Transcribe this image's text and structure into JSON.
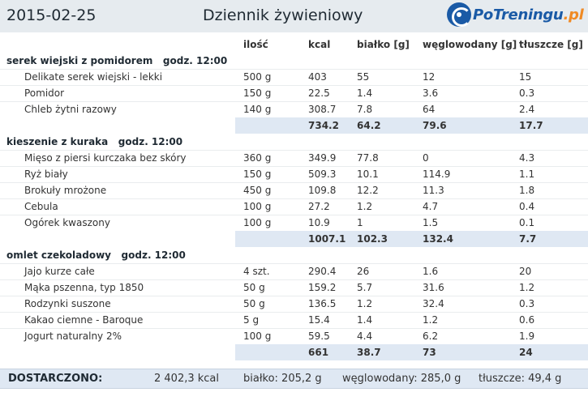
{
  "header": {
    "date": "2015-02-25",
    "title": "Dziennik żywieniowy",
    "logo_main": "PoTreningu",
    "logo_suffix": ".pl"
  },
  "columns": {
    "ilosc": "ilość",
    "kcal": "kcal",
    "bialko": "białko [g]",
    "wegle": "węglowodany [g]",
    "tluszcze": "tłuszcze [g]"
  },
  "meals": [
    {
      "title": "serek wiejski z pomidorem   godz. 12:00",
      "items": [
        {
          "name": "Delikate serek wiejski - lekki",
          "ilosc": "500 g",
          "kcal": "403",
          "bialko": "55",
          "wegle": "12",
          "tluszcze": "15"
        },
        {
          "name": "Pomidor",
          "ilosc": "150 g",
          "kcal": "22.5",
          "bialko": "1.4",
          "wegle": "3.6",
          "tluszcze": "0.3"
        },
        {
          "name": "Chleb żytni razowy",
          "ilosc": "140 g",
          "kcal": "308.7",
          "bialko": "7.8",
          "wegle": "64",
          "tluszcze": "2.4"
        }
      ],
      "total": {
        "kcal": "734.2",
        "bialko": "64.2",
        "wegle": "79.6",
        "tluszcze": "17.7"
      }
    },
    {
      "title": "kieszenie z kuraka   godz. 12:00",
      "items": [
        {
          "name": "Mięso z piersi kurczaka bez skóry",
          "ilosc": "360 g",
          "kcal": "349.9",
          "bialko": "77.8",
          "wegle": "0",
          "tluszcze": "4.3"
        },
        {
          "name": "Ryż biały",
          "ilosc": "150 g",
          "kcal": "509.3",
          "bialko": "10.1",
          "wegle": "114.9",
          "tluszcze": "1.1"
        },
        {
          "name": "Brokuły mrożone",
          "ilosc": "450 g",
          "kcal": "109.8",
          "bialko": "12.2",
          "wegle": "11.3",
          "tluszcze": "1.8"
        },
        {
          "name": "Cebula",
          "ilosc": "100 g",
          "kcal": "27.2",
          "bialko": "1.2",
          "wegle": "4.7",
          "tluszcze": "0.4"
        },
        {
          "name": "Ogórek kwaszony",
          "ilosc": "100 g",
          "kcal": "10.9",
          "bialko": "1",
          "wegle": "1.5",
          "tluszcze": "0.1"
        }
      ],
      "total": {
        "kcal": "1007.1",
        "bialko": "102.3",
        "wegle": "132.4",
        "tluszcze": "7.7"
      }
    },
    {
      "title": "omlet czekoladowy   godz. 12:00",
      "items": [
        {
          "name": "Jajo kurze całe",
          "ilosc": "4 szt.",
          "kcal": "290.4",
          "bialko": "26",
          "wegle": "1.6",
          "tluszcze": "20"
        },
        {
          "name": "Mąka pszenna, typ 1850",
          "ilosc": "50 g",
          "kcal": "159.2",
          "bialko": "5.7",
          "wegle": "31.6",
          "tluszcze": "1.2"
        },
        {
          "name": "Rodzynki suszone",
          "ilosc": "50 g",
          "kcal": "136.5",
          "bialko": "1.2",
          "wegle": "32.4",
          "tluszcze": "0.3"
        },
        {
          "name": "Kakao ciemne - Baroque",
          "ilosc": "5 g",
          "kcal": "15.4",
          "bialko": "1.4",
          "wegle": "1.2",
          "tluszcze": "0.6"
        },
        {
          "name": "Jogurt naturalny 2%",
          "ilosc": "100 g",
          "kcal": "59.5",
          "bialko": "4.4",
          "wegle": "6.2",
          "tluszcze": "1.9"
        }
      ],
      "total": {
        "kcal": "661",
        "bialko": "38.7",
        "wegle": "73",
        "tluszcze": "24"
      }
    }
  ],
  "footer": {
    "label": "DOSTARCZONO:",
    "kcal": "2 402,3 kcal",
    "bialko": "białko: 205,2 g",
    "wegle": "węglowodany: 285,0 g",
    "tluszcze": "tłuszcze: 49,4 g"
  }
}
